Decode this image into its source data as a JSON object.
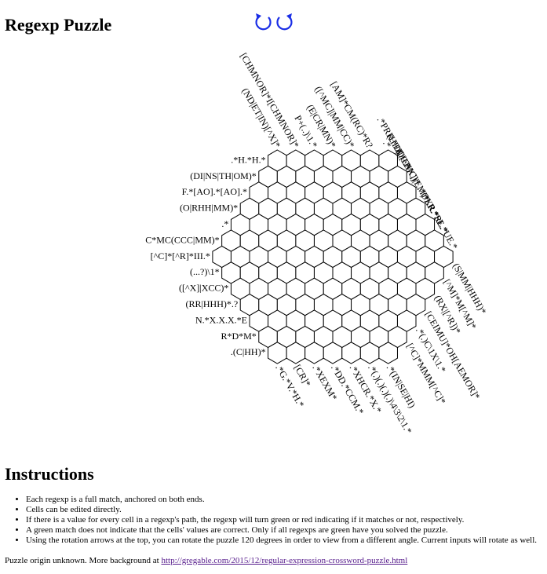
{
  "title": "Regexp Puzzle",
  "rotation": {
    "left_icon": "rotate-counterclockwise-icon",
    "right_icon": "rotate-clockwise-icon",
    "color": "#1a2ee6"
  },
  "puzzle": {
    "left_clues": [
      ".*H.*H.*",
      "(DI|NS|TH|OM)*",
      "F.*[AO].*[AO].*",
      "(O|RHH|MM)*",
      ".*",
      "C*MC(CCC|MM)*",
      "[^C]*[^R]*III.*",
      "(...?)\\1*",
      "([^X]|XCC)*",
      "(RR|HHH)*.?",
      "N.*X.X.X.*E",
      "R*D*M*",
      ".(C|HH)*"
    ],
    "top_clues": [
      "(ND|ET|IN)[^X]*",
      "[CHMNOR]*I[CHMNOR]*",
      "P+(..)\\1.*",
      "(E|CR|MN)*",
      "([^MC]|MM|CC)*",
      "[AM]*CM(RC)*R?",
      ".*",
      ".*PRR.*DDC.*",
      "(HHX|[^HX])*",
      "([^EMC]|EM)*",
      ".*OXR.*",
      ".*LR.*RL.*",
      ".*SE.*UE.*"
    ],
    "bottom_clues": [
      ".*G.*V.*H.*",
      "[CR]*",
      ".*XEXM*",
      ".*DD.*CCM.*",
      ".*XHCR.*X.*",
      ".*(.)(.)(.)(.)\\4\\3\\2\\1.*",
      ".*(IN|SE|HI)",
      "[^C]*MMM[^C]*",
      ".*(.)C\\1X\\1.*",
      "[CEIMU]*OH[AEMOR]*",
      "(RX|[^R])*",
      "[^M]*M[^M]*",
      "(S|MM|HHH)*"
    ]
  },
  "instructions": {
    "title": "Instructions",
    "items": [
      "Each regexp is a full match, anchored on both ends.",
      "Cells can be edited directly.",
      "If there is a value for every cell in a regexp's path, the regexp will turn green or red indicating if it matches or not, respectively.",
      "A green match does not indicate that the cells' values are correct. Only if all regexps are green have you solved the puzzle.",
      "Using the rotation arrows at the top, you can rotate the puzzle 120 degrees in order to view from a different angle. Current inputs will rotate as well."
    ]
  },
  "origin": {
    "text": "Puzzle origin unknown. More background at ",
    "link_text": "http://gregable.com/2015/12/regular-expression-crossword-puzzle.html"
  }
}
